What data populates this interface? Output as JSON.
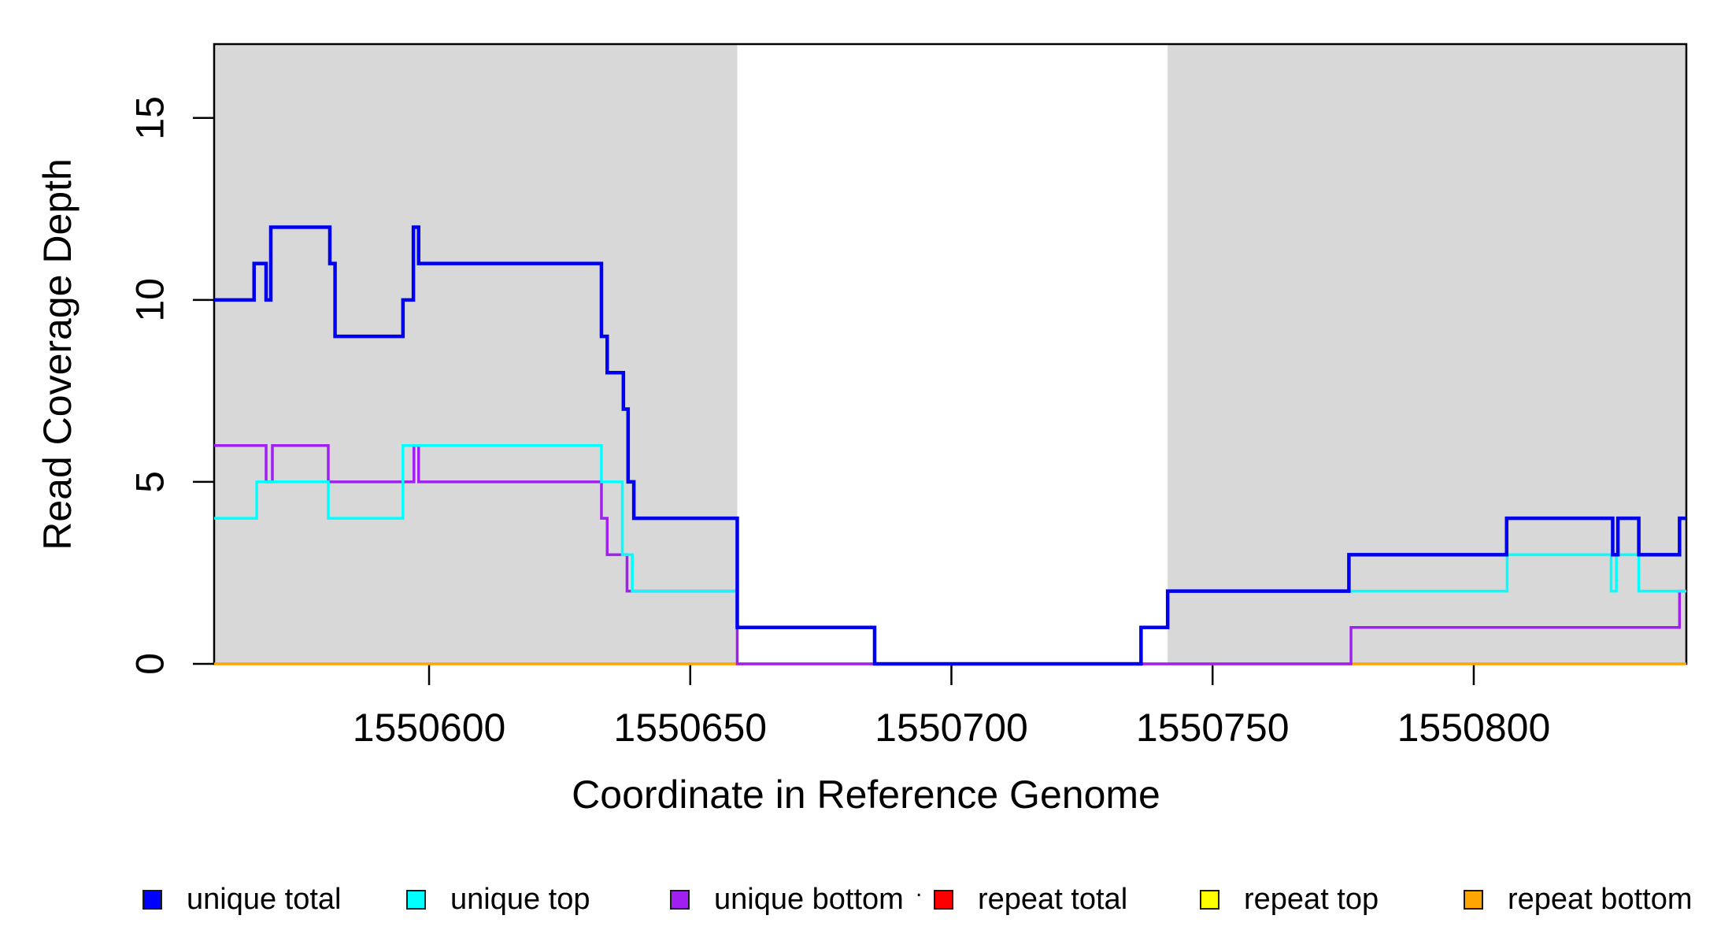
{
  "figure": {
    "background_color": "#FFFFFF",
    "x_axis_title": "Coordinate in Reference Genome",
    "y_axis_title": "Read Coverage Depth",
    "artifact_dot": "."
  },
  "chart_data": {
    "type": "line",
    "subtype": "step",
    "title": "",
    "xlabel": "Coordinate in Reference Genome",
    "ylabel": "Read Coverage Depth",
    "xlim": [
      1550558.85,
      1550840.7
    ],
    "ylim": [
      0,
      17.03
    ],
    "x_ticks": [
      1550600,
      1550650,
      1550700,
      1550750,
      1550800
    ],
    "y_ticks": [
      0,
      5,
      10,
      15
    ],
    "grid": false,
    "legend_position": "bottom",
    "box_color": "#000000",
    "shaded_regions": [
      {
        "x0": 1550558.85,
        "x1": 1550659.0,
        "color": "#D8D8D8"
      },
      {
        "x0": 1550741.4,
        "x1": 1550840.7,
        "color": "#D8D8D8"
      }
    ],
    "draw_order": [
      3,
      4,
      5,
      2,
      1,
      0
    ],
    "series": [
      {
        "name": "unique total",
        "color": "#0000EE",
        "line_width": 4.5,
        "points": [
          [
            1550558.85,
            10
          ],
          [
            1550566.5,
            11
          ],
          [
            1550568.8,
            10
          ],
          [
            1550569.7,
            12
          ],
          [
            1550581.0,
            11
          ],
          [
            1550582.0,
            9
          ],
          [
            1550595.0,
            10
          ],
          [
            1550597.0,
            12
          ],
          [
            1550598.0,
            11
          ],
          [
            1550633.0,
            9
          ],
          [
            1550634.1,
            8
          ],
          [
            1550637.2,
            7
          ],
          [
            1550638.1,
            5
          ],
          [
            1550639.2,
            4
          ],
          [
            1550659.0,
            1
          ],
          [
            1550685.3,
            0
          ],
          [
            1550736.3,
            1
          ],
          [
            1550741.4,
            2
          ],
          [
            1550776.1,
            3
          ],
          [
            1550806.3,
            4
          ],
          [
            1550826.6,
            3
          ],
          [
            1550827.6,
            4
          ],
          [
            1550831.6,
            3
          ],
          [
            1550839.4,
            4
          ]
        ]
      },
      {
        "name": "unique top",
        "color": "#00FFFF",
        "line_width": 3.5,
        "points": [
          [
            1550558.85,
            4
          ],
          [
            1550567.0,
            5
          ],
          [
            1550580.7,
            4
          ],
          [
            1550595.0,
            6
          ],
          [
            1550633.0,
            5
          ],
          [
            1550637.0,
            3
          ],
          [
            1550638.9,
            2
          ],
          [
            1550659.0,
            1
          ],
          [
            1550685.3,
            0
          ],
          [
            1550736.3,
            1
          ],
          [
            1550741.4,
            2
          ],
          [
            1550806.4,
            3
          ],
          [
            1550826.3,
            2
          ],
          [
            1550827.3,
            3
          ],
          [
            1550831.6,
            2
          ]
        ]
      },
      {
        "name": "unique bottom",
        "color": "#A020F0",
        "line_width": 3.5,
        "points": [
          [
            1550558.85,
            6
          ],
          [
            1550568.8,
            5
          ],
          [
            1550570.0,
            6
          ],
          [
            1550580.7,
            5
          ],
          [
            1550597.1,
            6
          ],
          [
            1550598.0,
            5
          ],
          [
            1550633.0,
            4
          ],
          [
            1550634.1,
            3
          ],
          [
            1550637.9,
            2
          ],
          [
            1550659.0,
            0
          ],
          [
            1550776.5,
            1
          ],
          [
            1550839.4,
            2
          ]
        ]
      },
      {
        "name": "repeat total",
        "color": "#FF0000",
        "line_width": 3,
        "points": [
          [
            1550558.85,
            0
          ]
        ]
      },
      {
        "name": "repeat top",
        "color": "#FFFF00",
        "line_width": 3,
        "points": [
          [
            1550558.85,
            0
          ]
        ]
      },
      {
        "name": "repeat bottom",
        "color": "#FFA500",
        "line_width": 3.5,
        "points": [
          [
            1550558.85,
            0
          ]
        ]
      }
    ]
  },
  "legend": {
    "items": [
      {
        "label": "unique total",
        "color": "#0000FF"
      },
      {
        "label": "unique top",
        "color": "#00FFFF"
      },
      {
        "label": "unique bottom",
        "color": "#A020F0"
      },
      {
        "label": "repeat total",
        "color": "#FF0000"
      },
      {
        "label": "repeat top",
        "color": "#FFFF00"
      },
      {
        "label": "repeat bottom",
        "color": "#FFA500"
      }
    ]
  }
}
